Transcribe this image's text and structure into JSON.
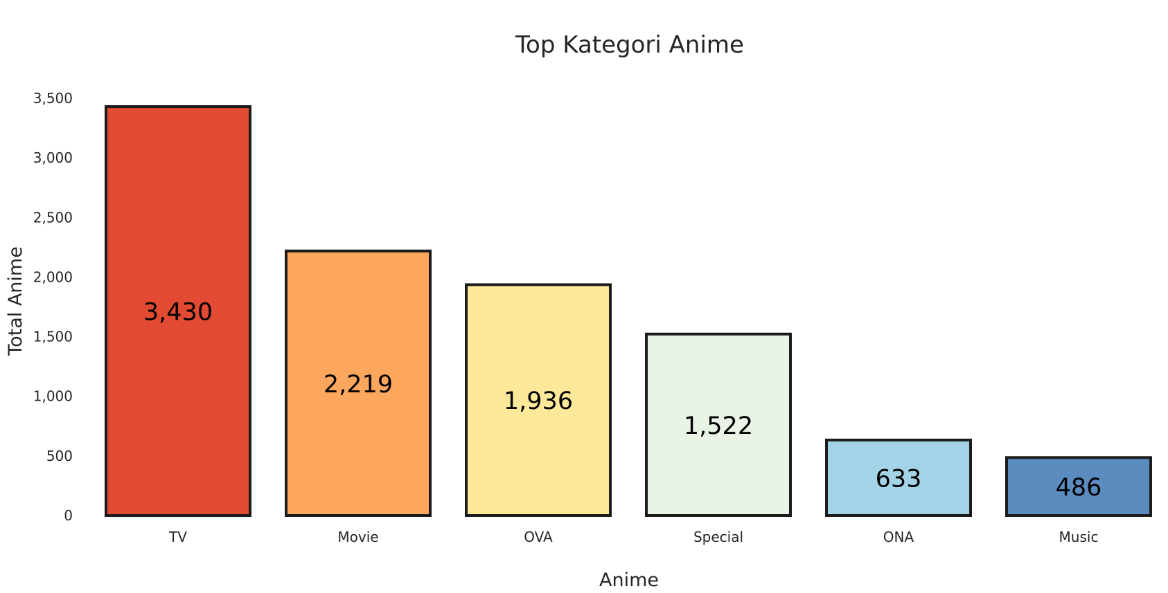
{
  "chart_data": {
    "type": "bar",
    "title": "Top Kategori Anime",
    "xlabel": "Anime",
    "ylabel": "Total Anime",
    "categories": [
      "TV",
      "Movie",
      "OVA",
      "Special",
      "ONA",
      "Music"
    ],
    "values": [
      3430,
      2219,
      1936,
      1522,
      633,
      486
    ],
    "value_labels": [
      "3,430",
      "2,219",
      "1,936",
      "1,522",
      "633",
      "486"
    ],
    "colors": [
      "#e34a33",
      "#fca65e",
      "#fee89a",
      "#eaf4e6",
      "#a3d3e6",
      "#5a8cc0"
    ],
    "ylim": [
      0,
      3500
    ],
    "yticks": [
      0,
      500,
      1000,
      1500,
      2000,
      2500,
      3000,
      3500
    ],
    "ytick_labels": [
      "0",
      "500",
      "1,000",
      "1,500",
      "2,000",
      "2,500",
      "3,000",
      "3,500"
    ],
    "grid": false,
    "legend": false
  }
}
